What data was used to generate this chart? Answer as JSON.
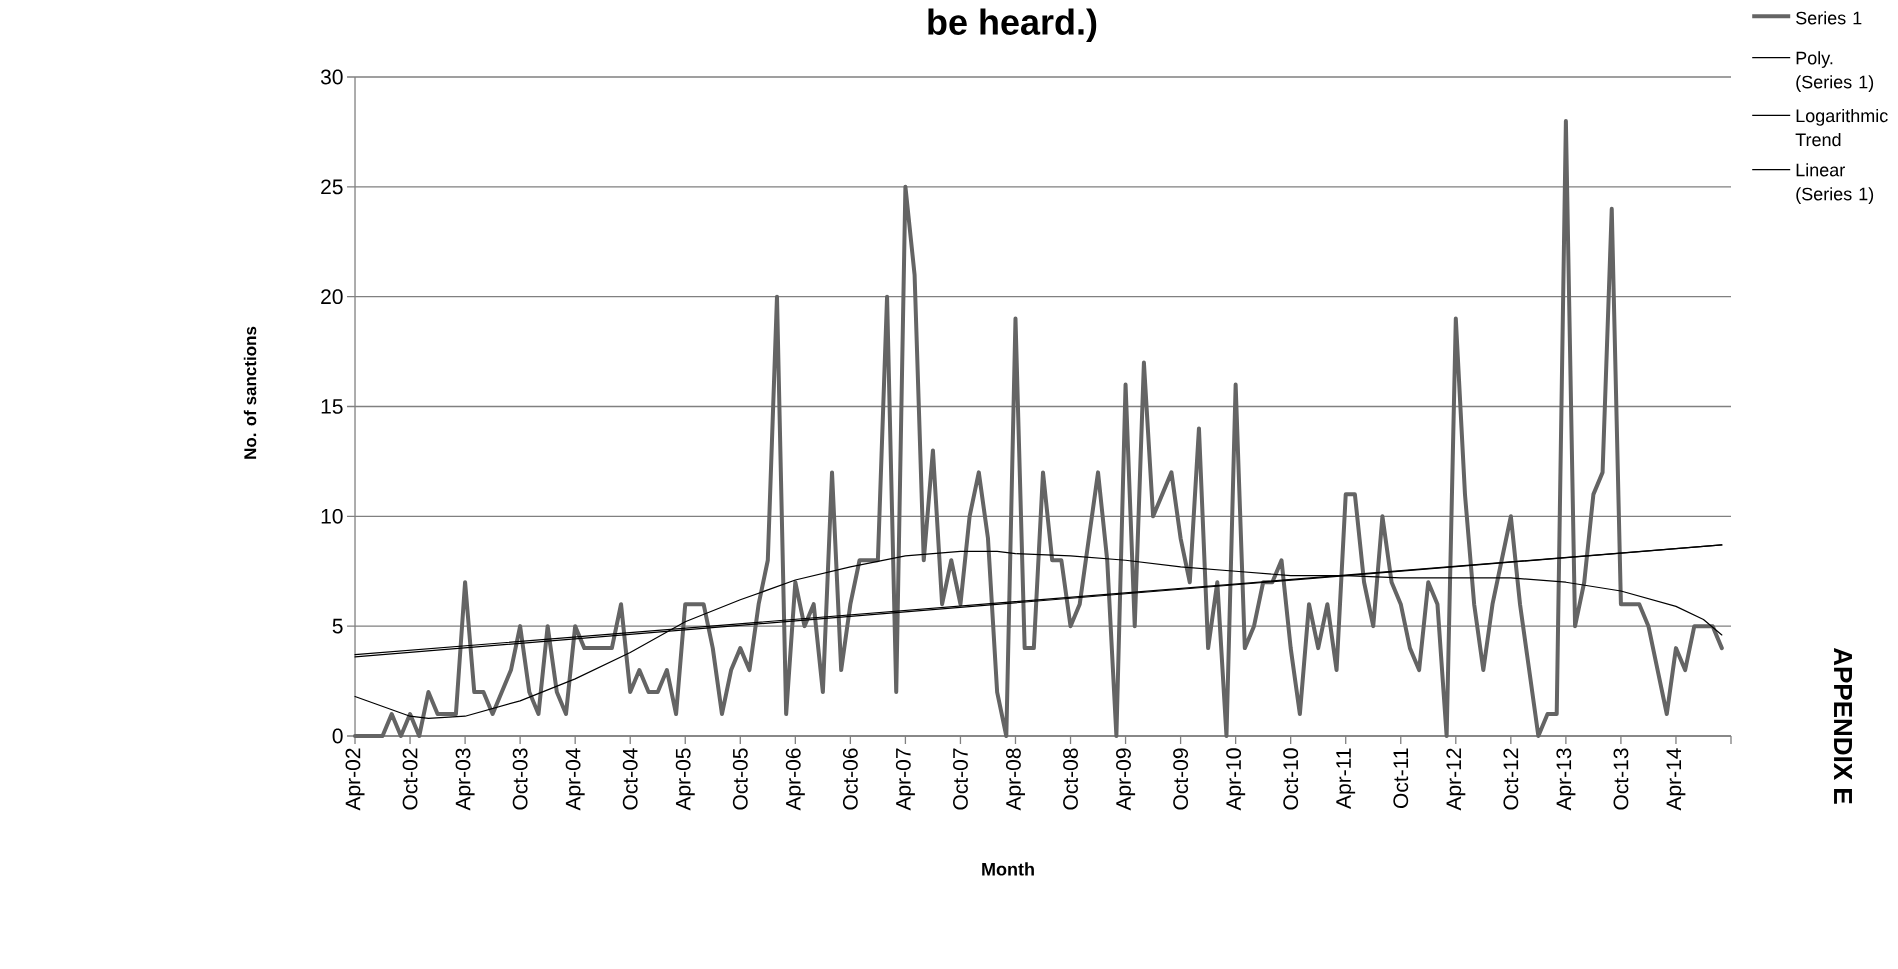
{
  "chart_data": {
    "type": "line",
    "title": "be heard.)",
    "xlabel": "Month",
    "ylabel": "No. of sanctions",
    "annotations": [
      "APPENDIX E"
    ],
    "xlim": [
      "2002-04",
      "2014-10"
    ],
    "ylim": [
      0,
      30
    ],
    "yticks": [
      0,
      5,
      10,
      15,
      20,
      25,
      30
    ],
    "xticks": [
      {
        "value": "2002-04",
        "label": "Apr-02"
      },
      {
        "value": "2002-10",
        "label": "Oct-02"
      },
      {
        "value": "2003-04",
        "label": "Apr-03"
      },
      {
        "value": "2003-10",
        "label": "Oct-03"
      },
      {
        "value": "2004-04",
        "label": "Apr-04"
      },
      {
        "value": "2004-10",
        "label": "Oct-04"
      },
      {
        "value": "2005-04",
        "label": "Apr-05"
      },
      {
        "value": "2005-10",
        "label": "Oct-05"
      },
      {
        "value": "2006-04",
        "label": "Apr-06"
      },
      {
        "value": "2006-10",
        "label": "Oct-06"
      },
      {
        "value": "2007-04",
        "label": "Apr-07"
      },
      {
        "value": "2007-10",
        "label": "Oct-07"
      },
      {
        "value": "2008-04",
        "label": "Apr-08"
      },
      {
        "value": "2008-10",
        "label": "Oct-08"
      },
      {
        "value": "2009-04",
        "label": "Apr-09"
      },
      {
        "value": "2009-10",
        "label": "Oct-09"
      },
      {
        "value": "2010-04",
        "label": "Apr-10"
      },
      {
        "value": "2010-10",
        "label": "Oct-10"
      },
      {
        "value": "2011-04",
        "label": "Apr-11"
      },
      {
        "value": "2011-10",
        "label": "Oct-11"
      },
      {
        "value": "2012-04",
        "label": "Apr-12"
      },
      {
        "value": "2012-10",
        "label": "Oct-12"
      },
      {
        "value": "2013-04",
        "label": "Apr-13"
      },
      {
        "value": "2013-10",
        "label": "Oct-13"
      },
      {
        "value": "2014-04",
        "label": "Apr-14"
      },
      {
        "value": "2014-10",
        "label": null
      }
    ],
    "grid": "y",
    "legend": "right",
    "series": [
      {
        "name": "Series 1",
        "color": "#646464",
        "x": [
          "2002-04",
          "2002-05",
          "2002-06",
          "2002-07",
          "2002-08",
          "2002-09",
          "2002-10",
          "2002-11",
          "2002-12",
          "2003-01",
          "2003-02",
          "2003-03",
          "2003-04",
          "2003-05",
          "2003-06",
          "2003-07",
          "2003-08",
          "2003-09",
          "2003-10",
          "2003-11",
          "2003-12",
          "2004-01",
          "2004-02",
          "2004-03",
          "2004-04",
          "2004-05",
          "2004-06",
          "2004-07",
          "2004-08",
          "2004-09",
          "2004-10",
          "2004-11",
          "2004-12",
          "2005-01",
          "2005-02",
          "2005-03",
          "2005-04",
          "2005-05",
          "2005-06",
          "2005-07",
          "2005-08",
          "2005-09",
          "2005-10",
          "2005-11",
          "2005-12",
          "2006-01",
          "2006-02",
          "2006-03",
          "2006-04",
          "2006-05",
          "2006-06",
          "2006-07",
          "2006-08",
          "2006-09",
          "2006-10",
          "2006-11",
          "2006-12",
          "2007-01",
          "2007-02",
          "2007-03",
          "2007-04",
          "2007-05",
          "2007-06",
          "2007-07",
          "2007-08",
          "2007-09",
          "2007-10",
          "2007-11",
          "2007-12",
          "2008-01",
          "2008-02",
          "2008-03",
          "2008-04",
          "2008-05",
          "2008-06",
          "2008-07",
          "2008-08",
          "2008-09",
          "2008-10",
          "2008-11",
          "2008-12",
          "2009-01",
          "2009-02",
          "2009-03",
          "2009-04",
          "2009-05",
          "2009-06",
          "2009-07",
          "2009-08",
          "2009-09",
          "2009-10",
          "2009-11",
          "2009-12",
          "2010-01",
          "2010-02",
          "2010-03",
          "2010-04",
          "2010-05",
          "2010-06",
          "2010-07",
          "2010-08",
          "2010-09",
          "2010-10",
          "2010-11",
          "2010-12",
          "2011-01",
          "2011-02",
          "2011-03",
          "2011-04",
          "2011-05",
          "2011-06",
          "2011-07",
          "2011-08",
          "2011-09",
          "2011-10",
          "2011-11",
          "2011-12",
          "2012-01",
          "2012-02",
          "2012-03",
          "2012-04",
          "2012-05",
          "2012-06",
          "2012-07",
          "2012-08",
          "2012-09",
          "2012-10",
          "2012-11",
          "2012-12",
          "2013-01",
          "2013-02",
          "2013-03",
          "2013-04",
          "2013-05",
          "2013-06",
          "2013-07",
          "2013-08",
          "2013-09",
          "2013-10",
          "2013-11",
          "2013-12",
          "2014-01",
          "2014-02",
          "2014-03",
          "2014-04",
          "2014-05",
          "2014-06",
          "2014-07",
          "2014-08",
          "2014-09"
        ],
        "values": [
          0,
          0,
          0,
          0,
          1,
          0,
          1,
          0,
          2,
          1,
          1,
          1,
          7,
          2,
          2,
          1,
          2,
          3,
          5,
          2,
          1,
          5,
          2,
          1,
          5,
          4,
          4,
          4,
          4,
          6,
          2,
          3,
          2,
          2,
          3,
          1,
          6,
          6,
          6,
          4,
          1,
          3,
          4,
          3,
          6,
          8,
          20,
          1,
          7,
          5,
          6,
          2,
          12,
          3,
          6,
          8,
          8,
          8,
          20,
          2,
          25,
          21,
          8,
          13,
          6,
          8,
          6,
          10,
          12,
          9,
          2,
          0,
          19,
          4,
          4,
          12,
          8,
          8,
          5,
          6,
          9,
          12,
          8,
          0,
          16,
          5,
          17,
          10,
          11,
          12,
          9,
          7,
          14,
          4,
          7,
          0,
          16,
          4,
          5,
          7,
          7,
          8,
          4,
          1,
          6,
          4,
          6,
          3,
          11,
          11,
          7,
          5,
          10,
          7,
          6,
          4,
          3,
          7,
          6,
          0,
          19,
          11,
          6,
          3,
          6,
          8,
          10,
          6,
          3,
          0,
          1,
          1,
          28,
          5,
          7,
          11,
          12,
          24,
          6,
          6,
          6,
          5,
          3,
          1,
          4,
          3,
          5,
          5,
          5,
          4
        ]
      },
      {
        "name": "Poly. (Series 1)",
        "type": "line",
        "color": "#000000",
        "x": [
          "2002-04",
          "2002-10",
          "2002-12",
          "2003-04",
          "2003-10",
          "2004-04",
          "2004-10",
          "2005-04",
          "2005-10",
          "2006-04",
          "2006-10",
          "2007-04",
          "2007-10",
          "2008-02",
          "2008-04",
          "2008-10",
          "2009-04",
          "2009-10",
          "2010-04",
          "2010-10",
          "2011-04",
          "2011-10",
          "2012-04",
          "2012-10",
          "2013-04",
          "2013-10",
          "2014-04",
          "2014-07",
          "2014-09"
        ],
        "values": [
          1.8,
          0.9,
          0.8,
          0.9,
          1.6,
          2.6,
          3.8,
          5.2,
          6.2,
          7.1,
          7.7,
          8.2,
          8.4,
          8.4,
          8.3,
          8.2,
          8.0,
          7.7,
          7.5,
          7.3,
          7.3,
          7.2,
          7.2,
          7.2,
          7.0,
          6.6,
          5.9,
          5.3,
          4.6
        ]
      },
      {
        "name": "Logarithmic Trend",
        "type": "line",
        "color": "#000000",
        "x": [
          "2002-04",
          "2014-09"
        ],
        "values": [
          3.7,
          8.7
        ]
      },
      {
        "name": "Linear (Series 1)",
        "type": "line",
        "color": "#000000",
        "x": [
          "2002-04",
          "2014-09"
        ],
        "values": [
          3.6,
          8.7
        ]
      }
    ]
  }
}
